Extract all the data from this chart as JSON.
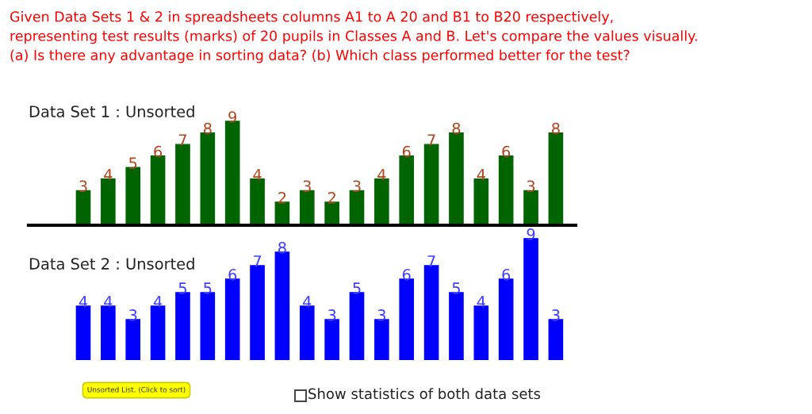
{
  "chart_data": [
    {
      "type": "bar",
      "title": "Data Set 1 : Unsorted",
      "categories": [
        null,
        null,
        null,
        null,
        null,
        null,
        null,
        null,
        null,
        null,
        null,
        null,
        null,
        null,
        null,
        null,
        null,
        null,
        null,
        null
      ],
      "series": [
        {
          "color": "#006400",
          "values": [
            3,
            4,
            5,
            6,
            7,
            8,
            9,
            4,
            2,
            3,
            2,
            3,
            4,
            6,
            7,
            8,
            4,
            6,
            3,
            8
          ]
        }
      ],
      "data_labels": true,
      "tick_labels": false,
      "grid": false,
      "annotations": [
        "Given Data Sets 1 & 2 in spreadsheets columns A1 to A 20 and B1 to B20 respectively,\nrepresenting test results (marks) of 20 pupils in Classes A and B. Let's compare the values visually.\n(a) Is there any advantage in sorting data? (b) Which class performed better for the test?"
      ]
    },
    {
      "type": "bar",
      "title": "Data Set 2 : Unsorted",
      "categories": [
        null,
        null,
        null,
        null,
        null,
        null,
        null,
        null,
        null,
        null,
        null,
        null,
        null,
        null,
        null,
        null,
        null,
        null,
        null,
        null
      ],
      "series": [
        {
          "color": "#0000ff",
          "values": [
            4,
            4,
            3,
            4,
            5,
            5,
            6,
            7,
            8,
            4,
            3,
            5,
            3,
            6,
            7,
            5,
            4,
            6,
            9,
            3
          ]
        }
      ],
      "data_labels": true,
      "tick_labels": false,
      "grid": false,
      "annotations": [
        "Unsorted List. (Click to sort)",
        "Show statistics of both data sets"
      ]
    }
  ]
}
